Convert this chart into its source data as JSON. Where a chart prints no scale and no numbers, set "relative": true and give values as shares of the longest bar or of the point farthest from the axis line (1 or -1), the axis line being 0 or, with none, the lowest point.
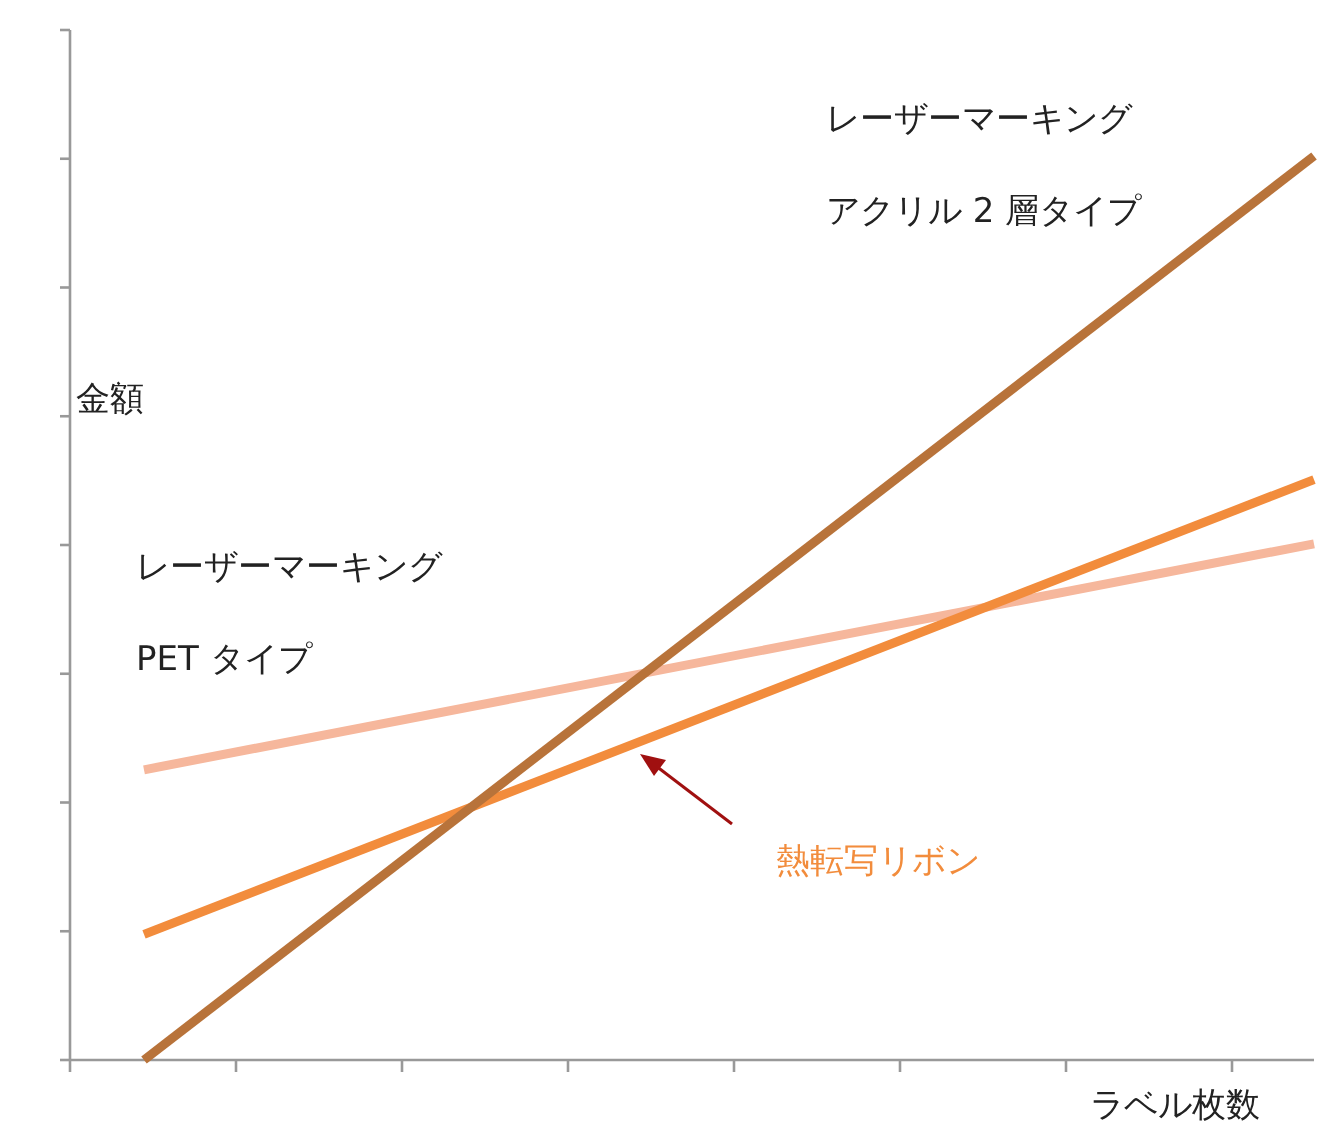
{
  "chart_data": {
    "type": "line",
    "relative": true,
    "categories": [
      null,
      null
    ],
    "xlabel": "ラベル枚数",
    "ylabel": "金額",
    "series": [
      {
        "name": "レーザーマーキングアクリル 2 層タイプ",
        "color": "#b8733a",
        "values": [
          0,
          1
        ]
      },
      {
        "name": "熱転写リボン",
        "color": "#f28c3c",
        "values": [
          0.139,
          0.642
        ]
      },
      {
        "name": "レーザーマーキング PET タイプ",
        "color": "#f6b79c",
        "values": [
          0.321,
          0.571
        ]
      }
    ]
  }
}
